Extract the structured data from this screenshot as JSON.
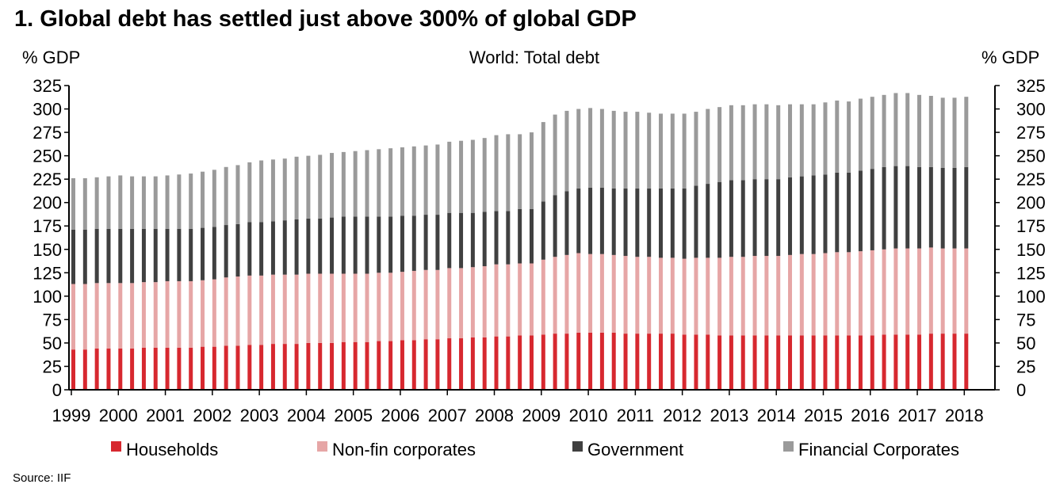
{
  "header": {
    "title": "1. Global debt has settled just above 300% of global GDP",
    "source": "Source: IIF"
  },
  "chart_data": {
    "type": "bar",
    "stacked": true,
    "subtitle": "World: Total debt",
    "ylabel_left": "% GDP",
    "ylabel_right": "% GDP",
    "ylim": [
      0,
      325
    ],
    "yticks": [
      0,
      25,
      50,
      75,
      100,
      125,
      150,
      175,
      200,
      225,
      250,
      275,
      300,
      325
    ],
    "xtick_labels": [
      "1999",
      "2000",
      "2001",
      "2002",
      "2003",
      "2004",
      "2005",
      "2006",
      "2007",
      "2008",
      "2009",
      "2010",
      "2011",
      "2012",
      "2013",
      "2014",
      "2015",
      "2016",
      "2017",
      "2018"
    ],
    "categories": [
      "1999Q1",
      "1999Q2",
      "1999Q3",
      "1999Q4",
      "2000Q1",
      "2000Q2",
      "2000Q3",
      "2000Q4",
      "2001Q1",
      "2001Q2",
      "2001Q3",
      "2001Q4",
      "2002Q1",
      "2002Q2",
      "2002Q3",
      "2002Q4",
      "2003Q1",
      "2003Q2",
      "2003Q3",
      "2003Q4",
      "2004Q1",
      "2004Q2",
      "2004Q3",
      "2004Q4",
      "2005Q1",
      "2005Q2",
      "2005Q3",
      "2005Q4",
      "2006Q1",
      "2006Q2",
      "2006Q3",
      "2006Q4",
      "2007Q1",
      "2007Q2",
      "2007Q3",
      "2007Q4",
      "2008Q1",
      "2008Q2",
      "2008Q3",
      "2008Q4",
      "2009Q1",
      "2009Q2",
      "2009Q3",
      "2009Q4",
      "2010Q1",
      "2010Q2",
      "2010Q3",
      "2010Q4",
      "2011Q1",
      "2011Q2",
      "2011Q3",
      "2011Q4",
      "2012Q1",
      "2012Q2",
      "2012Q3",
      "2012Q4",
      "2013Q1",
      "2013Q2",
      "2013Q3",
      "2013Q4",
      "2014Q1",
      "2014Q2",
      "2014Q3",
      "2014Q4",
      "2015Q1",
      "2015Q2",
      "2015Q3",
      "2015Q4",
      "2016Q1",
      "2016Q2",
      "2016Q3",
      "2016Q4",
      "2017Q1",
      "2017Q2",
      "2017Q3",
      "2017Q4",
      "2018Q1"
    ],
    "series": [
      {
        "name": "Households",
        "color": "#d7282f",
        "values": [
          43,
          43,
          44,
          44,
          44,
          44,
          45,
          45,
          45,
          45,
          45,
          46,
          46,
          47,
          47,
          48,
          48,
          49,
          49,
          49,
          50,
          50,
          50,
          51,
          51,
          51,
          52,
          52,
          53,
          53,
          54,
          54,
          55,
          55,
          56,
          56,
          57,
          57,
          58,
          58,
          59,
          60,
          60,
          61,
          61,
          61,
          61,
          60,
          60,
          60,
          60,
          60,
          59,
          59,
          59,
          58,
          58,
          58,
          58,
          58,
          58,
          58,
          58,
          58,
          58,
          58,
          58,
          58,
          58,
          59,
          59,
          59,
          59,
          60,
          60,
          60,
          60
        ]
      },
      {
        "name": "Non-fin corporates",
        "color": "#e6a6a6",
        "values": [
          70,
          70,
          70,
          70,
          70,
          70,
          70,
          70,
          71,
          71,
          71,
          71,
          72,
          73,
          74,
          74,
          74,
          74,
          74,
          74,
          74,
          74,
          74,
          73,
          73,
          73,
          73,
          73,
          73,
          74,
          74,
          74,
          75,
          75,
          75,
          76,
          77,
          77,
          77,
          77,
          80,
          82,
          84,
          85,
          84,
          84,
          83,
          83,
          82,
          82,
          81,
          81,
          81,
          82,
          82,
          83,
          84,
          84,
          85,
          85,
          85,
          86,
          87,
          87,
          88,
          89,
          89,
          90,
          91,
          91,
          92,
          92,
          92,
          92,
          91,
          91,
          91
        ]
      },
      {
        "name": "Government",
        "color": "#404040",
        "values": [
          58,
          58,
          58,
          58,
          58,
          58,
          57,
          57,
          56,
          56,
          56,
          56,
          56,
          56,
          56,
          57,
          57,
          57,
          58,
          59,
          59,
          59,
          60,
          61,
          61,
          61,
          60,
          60,
          60,
          59,
          59,
          59,
          59,
          59,
          58,
          58,
          57,
          57,
          58,
          58,
          62,
          66,
          68,
          69,
          71,
          71,
          71,
          72,
          73,
          73,
          74,
          74,
          75,
          77,
          79,
          81,
          82,
          82,
          82,
          82,
          82,
          83,
          83,
          84,
          84,
          85,
          85,
          86,
          87,
          88,
          88,
          88,
          87,
          86,
          86,
          86,
          87
        ]
      },
      {
        "name": "Financial Corporates",
        "color": "#9a9a9a",
        "values": [
          55,
          55,
          55,
          56,
          57,
          56,
          56,
          56,
          57,
          58,
          59,
          60,
          61,
          62,
          63,
          64,
          66,
          66,
          66,
          67,
          67,
          68,
          69,
          69,
          70,
          71,
          72,
          73,
          73,
          74,
          74,
          75,
          76,
          77,
          78,
          79,
          81,
          82,
          80,
          82,
          85,
          86,
          86,
          85,
          85,
          84,
          83,
          82,
          82,
          81,
          80,
          80,
          80,
          79,
          80,
          80,
          80,
          80,
          80,
          80,
          79,
          78,
          77,
          76,
          77,
          77,
          76,
          77,
          77,
          77,
          78,
          78,
          77,
          76,
          75,
          75,
          75
        ]
      }
    ],
    "legend_position": "bottom"
  }
}
